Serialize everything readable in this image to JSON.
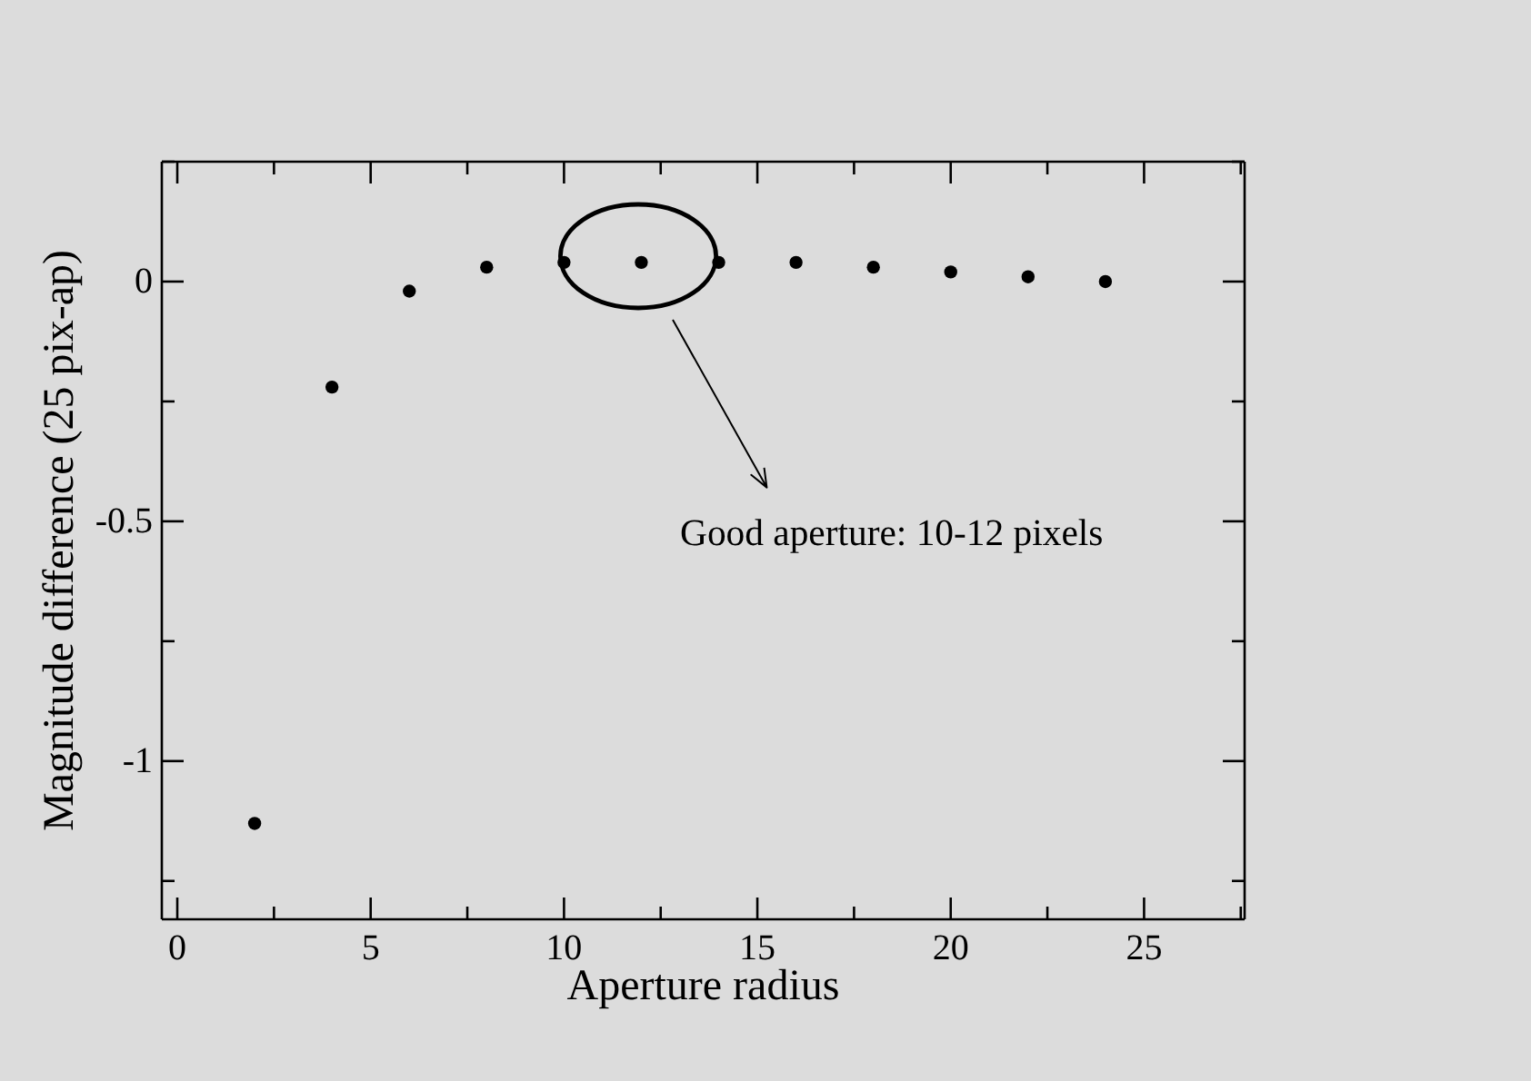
{
  "chart_data": {
    "type": "scatter",
    "xlabel": "Aperture radius",
    "ylabel": "Magnitude difference (25 pix-ap)",
    "x": [
      2,
      4,
      6,
      8,
      10,
      12,
      14,
      16,
      18,
      20,
      22,
      24
    ],
    "values": [
      -1.13,
      -0.22,
      -0.02,
      0.03,
      0.04,
      0.04,
      0.04,
      0.04,
      0.03,
      0.02,
      0.01,
      0
    ],
    "color": "#000000",
    "marker": "circle",
    "xlim": [
      -0.4,
      27.6
    ],
    "xticks": [
      0,
      {
        "value": 2.5,
        "label": null
      },
      5,
      {
        "value": 7.5,
        "label": null
      },
      10,
      {
        "value": 12.5,
        "label": null
      },
      15,
      {
        "value": 17.5,
        "label": null
      },
      20,
      {
        "value": 22.5,
        "label": null
      },
      25,
      {
        "value": 27.5,
        "label": null
      }
    ],
    "ylim": [
      -1.33,
      0.25
    ],
    "yticks": [
      {
        "value": -1.25,
        "label": null
      },
      -1,
      {
        "value": -0.75,
        "label": null
      },
      -0.5,
      {
        "value": -0.25,
        "label": null
      },
      0,
      {
        "value": 0.25,
        "label": null
      }
    ],
    "annotations": [
      "Good aperture: 10-12 pixels"
    ]
  }
}
